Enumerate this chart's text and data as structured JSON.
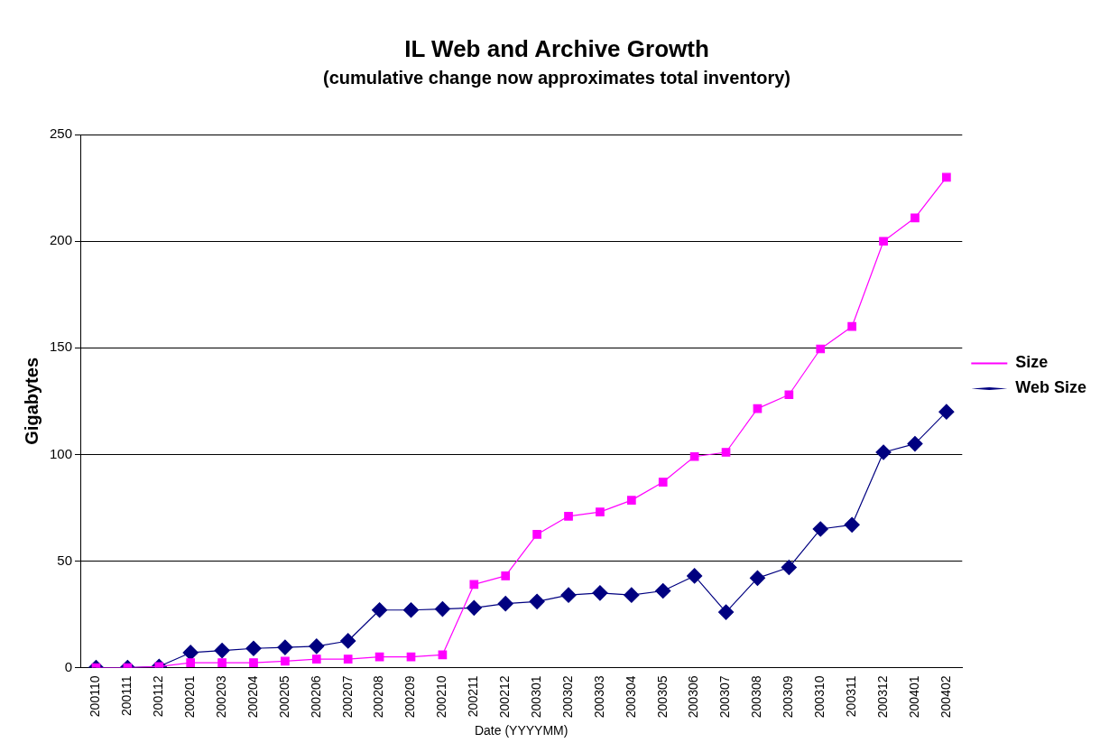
{
  "chart_data": {
    "type": "line",
    "title": "IL Web and Archive Growth",
    "subtitle": "(cumulative change now approximates total inventory)",
    "xlabel": "Date (YYYYMM)",
    "ylabel": "Gigabytes",
    "categories": [
      "200110",
      "200111",
      "200112",
      "200201",
      "200203",
      "200204",
      "200205",
      "200206",
      "200207",
      "200208",
      "200209",
      "200210",
      "200211",
      "200212",
      "200301",
      "200302",
      "200303",
      "200304",
      "200305",
      "200306",
      "200307",
      "200308",
      "200309",
      "200310",
      "200311",
      "200312",
      "200401",
      "200402"
    ],
    "series": [
      {
        "name": "Size",
        "color": "#ff00ff",
        "marker": "square",
        "values": [
          0,
          0,
          0.5,
          2.3,
          2.3,
          2.3,
          3,
          4,
          4,
          5,
          5,
          6,
          39,
          43,
          62.5,
          71,
          73,
          78.5,
          87,
          99,
          101,
          121.5,
          128,
          149.5,
          160,
          200,
          211,
          230
        ]
      },
      {
        "name": "Web Size",
        "color": "#000080",
        "marker": "diamond",
        "values": [
          0,
          0,
          0.5,
          7,
          8,
          9,
          9.5,
          10,
          12.5,
          27,
          27,
          27.5,
          28,
          30,
          31,
          34,
          35,
          34,
          36,
          43,
          26,
          42,
          47,
          65,
          67,
          101,
          105,
          120
        ]
      }
    ],
    "ylim": [
      0,
      250
    ],
    "yticks": [
      0,
      50,
      100,
      150,
      200,
      250
    ],
    "grid": "y",
    "legend": "right",
    "line_style": "solid"
  }
}
